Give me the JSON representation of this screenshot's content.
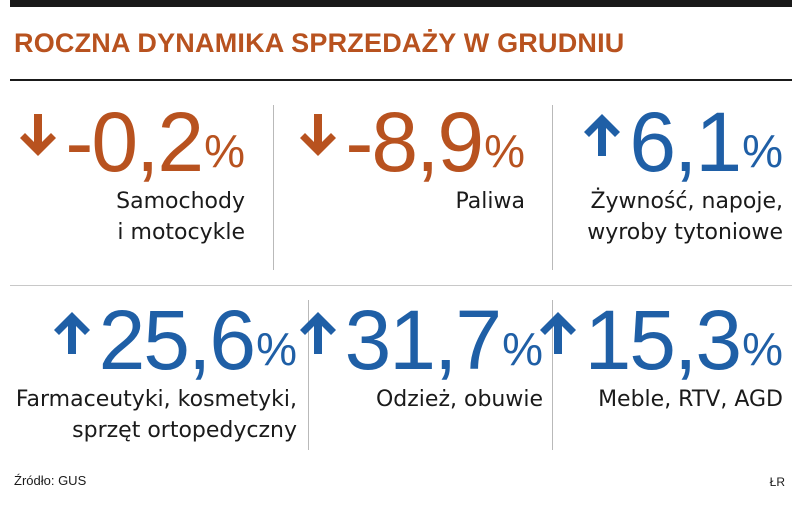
{
  "chart_data": {
    "type": "table",
    "title": "ROCZNA DYNAMIKA SPRZEDAŻY W GRUDNIU",
    "unit": "%",
    "items": [
      {
        "value": "-0,2",
        "direction": "down",
        "label_lines": [
          "Samochody",
          "i motocykle"
        ]
      },
      {
        "value": "-8,9",
        "direction": "down",
        "label_lines": [
          "Paliwa"
        ]
      },
      {
        "value": "6,1",
        "direction": "up",
        "label_lines": [
          "Żywność, napoje,",
          "wyroby tytoniowe"
        ]
      },
      {
        "value": "25,6",
        "direction": "up",
        "label_lines": [
          "Farmaceutyki, kosmetyki,",
          "sprzęt ortopedyczny"
        ]
      },
      {
        "value": "31,7",
        "direction": "up",
        "label_lines": [
          "Odzież, obuwie"
        ]
      },
      {
        "value": "15,3",
        "direction": "up",
        "label_lines": [
          "Meble, RTV, AGD"
        ]
      }
    ]
  },
  "footer": {
    "source": "Źródło: GUS",
    "signature": "ŁR"
  },
  "colors": {
    "negative": "#b8521f",
    "positive": "#1f5fa6",
    "title": "#b8521f",
    "text": "#1a1a1a"
  }
}
